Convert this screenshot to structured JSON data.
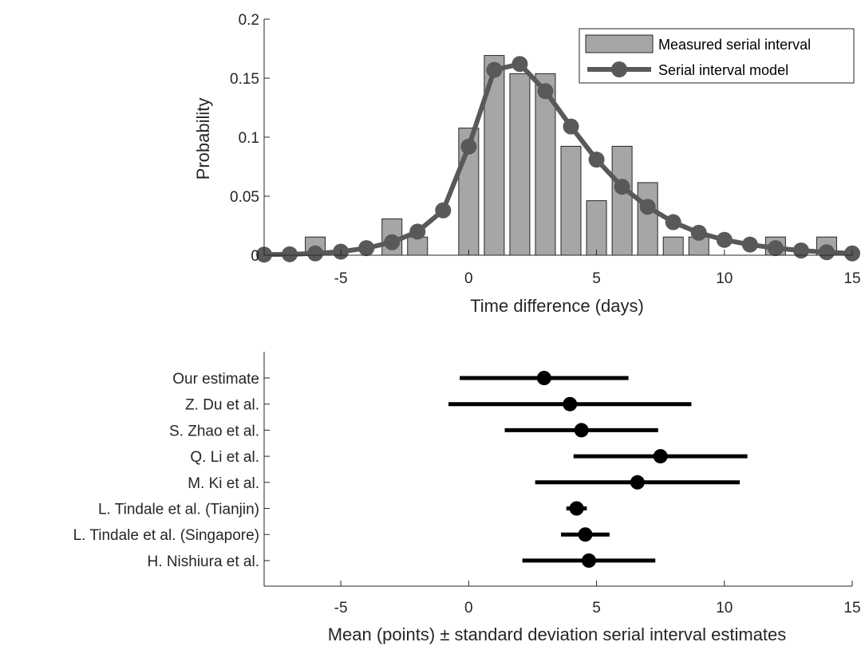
{
  "chart_data": [
    {
      "type": "bar",
      "xlabel": "Time difference (days)",
      "ylabel": "Probability",
      "xlim": [
        -8,
        15
      ],
      "ylim": [
        0,
        0.2
      ],
      "xticks": [
        -5,
        0,
        5,
        10,
        15
      ],
      "yticks": [
        0,
        0.05,
        0.1,
        0.15,
        0.2
      ],
      "xtick_labels": [
        "-5",
        "0",
        "5",
        "10",
        "15"
      ],
      "ytick_labels": [
        "0",
        "0.05",
        "0.1",
        "0.15",
        "0.2"
      ],
      "legend": {
        "placement": "top-right",
        "entries": [
          "Measured serial interval",
          "Serial interval model"
        ]
      },
      "series": [
        {
          "name": "Measured serial interval",
          "type": "bar",
          "color": "#a6a6a6",
          "x": [
            -6,
            -5,
            -4,
            -3,
            -2,
            -1,
            0,
            1,
            2,
            3,
            4,
            5,
            6,
            7,
            8,
            9,
            10,
            11,
            12,
            13,
            14
          ],
          "values": [
            0.0154,
            0,
            0,
            0.0308,
            0.0154,
            0,
            0.1077,
            0.1692,
            0.1538,
            0.1538,
            0.0923,
            0.0462,
            0.0923,
            0.0615,
            0.0154,
            0.0154,
            0,
            0,
            0.0154,
            0,
            0.0154
          ]
        },
        {
          "name": "Serial interval model",
          "type": "line",
          "color": "#595959",
          "x": [
            -8,
            -7,
            -6,
            -5,
            -4,
            -3,
            -2,
            -1,
            0,
            1,
            2,
            3,
            4,
            5,
            6,
            7,
            8,
            9,
            10,
            11,
            12,
            13,
            14,
            15
          ],
          "values": [
            0.0005,
            0.0008,
            0.0015,
            0.003,
            0.006,
            0.011,
            0.02,
            0.038,
            0.092,
            0.157,
            0.162,
            0.139,
            0.109,
            0.081,
            0.058,
            0.041,
            0.028,
            0.019,
            0.013,
            0.009,
            0.006,
            0.004,
            0.0025,
            0.0015
          ]
        }
      ]
    },
    {
      "type": "scatter",
      "xlabel": "Mean (points) ± standard deviation serial interval estimates",
      "xlim": [
        -8,
        15
      ],
      "xticks": [
        -5,
        0,
        5,
        10,
        15
      ],
      "xtick_labels": [
        "-5",
        "0",
        "5",
        "10",
        "15"
      ],
      "categories": [
        "Our estimate",
        "Z. Du et al.",
        "S. Zhao et al.",
        "Q. Li et al.",
        "M. Ki et al.",
        "L. Tindale et al. (Tianjin)",
        "L. Tindale et al. (Singapore)",
        "H. Nishiura et al."
      ],
      "series": [
        {
          "color": "#000000",
          "mean": [
            2.95,
            3.96,
            4.41,
            7.5,
            6.6,
            4.22,
            4.56,
            4.7
          ],
          "sd": [
            3.3,
            4.75,
            3.0,
            3.4,
            4.0,
            0.4,
            0.95,
            2.6
          ]
        }
      ]
    }
  ]
}
